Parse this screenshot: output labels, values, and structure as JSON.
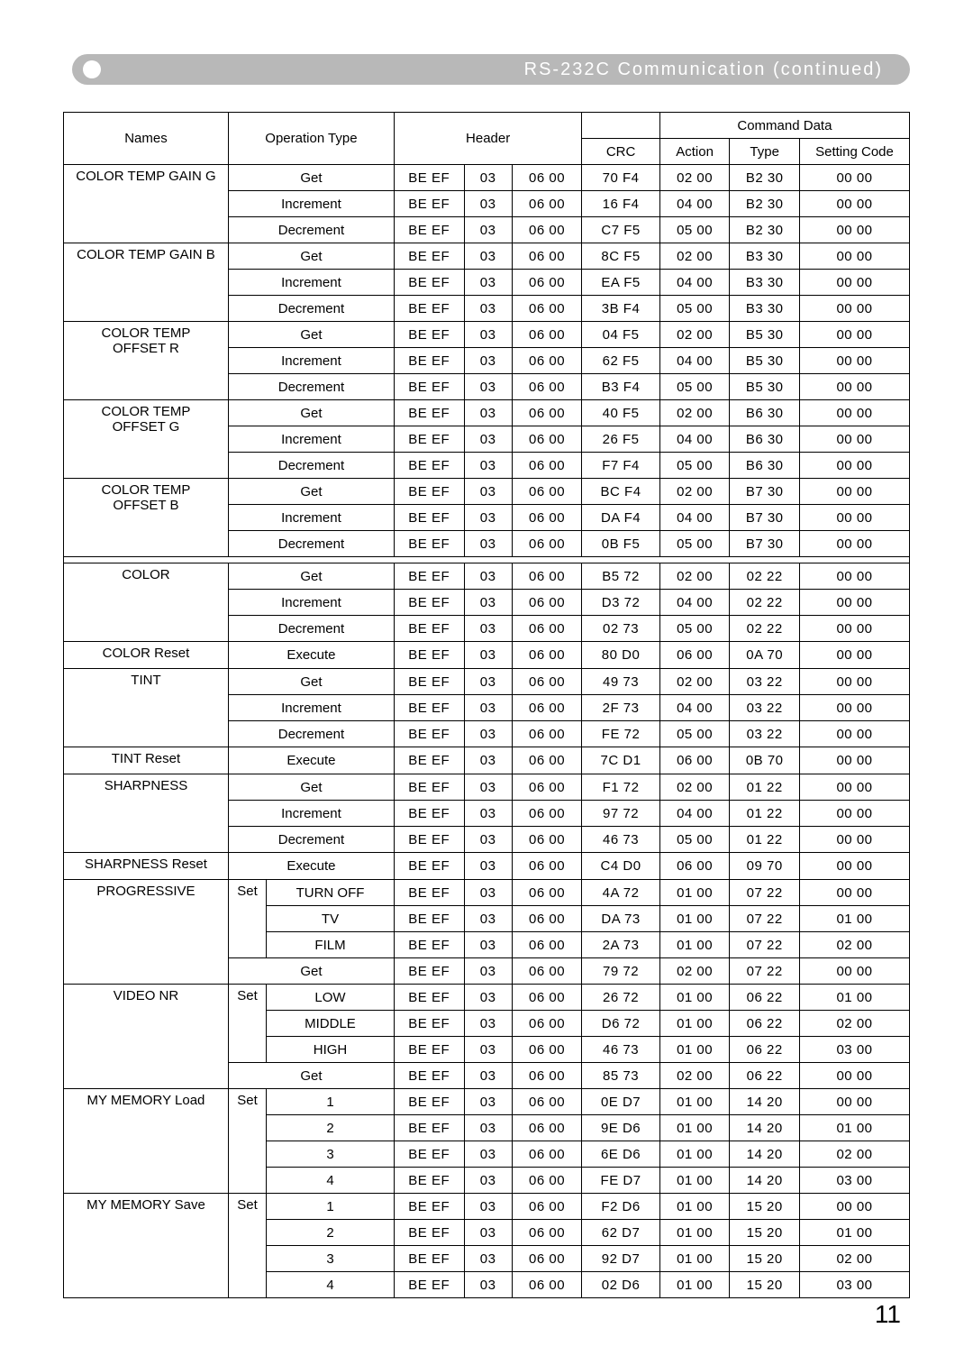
{
  "page_number": "11",
  "header_title": "RS-232C Communication (continued)",
  "th": {
    "names": "Names",
    "optype": "Operation Type",
    "header": "Header",
    "cmddata": "Command Data",
    "crc": "CRC",
    "action": "Action",
    "type": "Type",
    "setting": "Setting Code"
  },
  "groups": [
    {
      "name": "COLOR TEMP GAIN G",
      "rows": [
        {
          "op": "Get",
          "h1": "BE  EF",
          "h2": "03",
          "h3": "06  00",
          "crc": "70  F4",
          "act": "02  00",
          "typ": "B2  30",
          "set": "00  00"
        },
        {
          "op": "Increment",
          "h1": "BE  EF",
          "h2": "03",
          "h3": "06  00",
          "crc": "16  F4",
          "act": "04  00",
          "typ": "B2  30",
          "set": "00  00"
        },
        {
          "op": "Decrement",
          "h1": "BE  EF",
          "h2": "03",
          "h3": "06  00",
          "crc": "C7  F5",
          "act": "05  00",
          "typ": "B2  30",
          "set": "00  00"
        }
      ]
    },
    {
      "name": "COLOR TEMP GAIN B",
      "rows": [
        {
          "op": "Get",
          "h1": "BE  EF",
          "h2": "03",
          "h3": "06  00",
          "crc": "8C  F5",
          "act": "02  00",
          "typ": "B3  30",
          "set": "00  00"
        },
        {
          "op": "Increment",
          "h1": "BE  EF",
          "h2": "03",
          "h3": "06  00",
          "crc": "EA  F5",
          "act": "04  00",
          "typ": "B3  30",
          "set": "00  00"
        },
        {
          "op": "Decrement",
          "h1": "BE  EF",
          "h2": "03",
          "h3": "06  00",
          "crc": "3B  F4",
          "act": "05  00",
          "typ": "B3  30",
          "set": "00  00"
        }
      ]
    },
    {
      "name": "COLOR TEMP\nOFFSET R",
      "rows": [
        {
          "op": "Get",
          "h1": "BE  EF",
          "h2": "03",
          "h3": "06  00",
          "crc": "04  F5",
          "act": "02  00",
          "typ": "B5  30",
          "set": "00  00"
        },
        {
          "op": "Increment",
          "h1": "BE  EF",
          "h2": "03",
          "h3": "06  00",
          "crc": "62  F5",
          "act": "04  00",
          "typ": "B5  30",
          "set": "00  00"
        },
        {
          "op": "Decrement",
          "h1": "BE  EF",
          "h2": "03",
          "h3": "06  00",
          "crc": "B3  F4",
          "act": "05  00",
          "typ": "B5  30",
          "set": "00  00"
        }
      ]
    },
    {
      "name": "COLOR TEMP\nOFFSET G",
      "rows": [
        {
          "op": "Get",
          "h1": "BE  EF",
          "h2": "03",
          "h3": "06  00",
          "crc": "40  F5",
          "act": "02  00",
          "typ": "B6  30",
          "set": "00  00"
        },
        {
          "op": "Increment",
          "h1": "BE  EF",
          "h2": "03",
          "h3": "06  00",
          "crc": "26  F5",
          "act": "04  00",
          "typ": "B6  30",
          "set": "00  00"
        },
        {
          "op": "Decrement",
          "h1": "BE  EF",
          "h2": "03",
          "h3": "06  00",
          "crc": "F7  F4",
          "act": "05  00",
          "typ": "B6  30",
          "set": "00  00"
        }
      ]
    },
    {
      "name": "COLOR TEMP\nOFFSET B",
      "rows": [
        {
          "op": "Get",
          "h1": "BE  EF",
          "h2": "03",
          "h3": "06  00",
          "crc": "BC  F4",
          "act": "02  00",
          "typ": "B7  30",
          "set": "00  00"
        },
        {
          "op": "Increment",
          "h1": "BE  EF",
          "h2": "03",
          "h3": "06  00",
          "crc": "DA  F4",
          "act": "04  00",
          "typ": "B7  30",
          "set": "00  00"
        },
        {
          "op": "Decrement",
          "h1": "BE  EF",
          "h2": "03",
          "h3": "06  00",
          "crc": "0B  F5",
          "act": "05  00",
          "typ": "B7  30",
          "set": "00  00"
        }
      ]
    },
    {
      "gap": true
    },
    {
      "name": "COLOR",
      "rows": [
        {
          "op": "Get",
          "h1": "BE  EF",
          "h2": "03",
          "h3": "06  00",
          "crc": "B5  72",
          "act": "02  00",
          "typ": "02  22",
          "set": "00  00"
        },
        {
          "op": "Increment",
          "h1": "BE  EF",
          "h2": "03",
          "h3": "06  00",
          "crc": "D3  72",
          "act": "04  00",
          "typ": "02  22",
          "set": "00  00"
        },
        {
          "op": "Decrement",
          "h1": "BE  EF",
          "h2": "03",
          "h3": "06  00",
          "crc": "02  73",
          "act": "05  00",
          "typ": "02  22",
          "set": "00  00"
        }
      ]
    },
    {
      "name": "COLOR Reset",
      "rows": [
        {
          "op": "Execute",
          "h1": "BE  EF",
          "h2": "03",
          "h3": "06  00",
          "crc": "80  D0",
          "act": "06  00",
          "typ": "0A  70",
          "set": "00  00"
        }
      ]
    },
    {
      "name": "TINT",
      "rows": [
        {
          "op": "Get",
          "h1": "BE  EF",
          "h2": "03",
          "h3": "06  00",
          "crc": "49  73",
          "act": "02  00",
          "typ": "03  22",
          "set": "00  00"
        },
        {
          "op": "Increment",
          "h1": "BE  EF",
          "h2": "03",
          "h3": "06  00",
          "crc": "2F  73",
          "act": "04  00",
          "typ": "03  22",
          "set": "00  00"
        },
        {
          "op": "Decrement",
          "h1": "BE  EF",
          "h2": "03",
          "h3": "06  00",
          "crc": "FE  72",
          "act": "05  00",
          "typ": "03  22",
          "set": "00  00"
        }
      ]
    },
    {
      "name": "TINT Reset",
      "rows": [
        {
          "op": "Execute",
          "h1": "BE  EF",
          "h2": "03",
          "h3": "06  00",
          "crc": "7C  D1",
          "act": "06  00",
          "typ": "0B  70",
          "set": "00  00"
        }
      ]
    },
    {
      "name": "SHARPNESS",
      "rows": [
        {
          "op": "Get",
          "h1": "BE  EF",
          "h2": "03",
          "h3": "06  00",
          "crc": "F1  72",
          "act": "02  00",
          "typ": "01  22",
          "set": "00  00"
        },
        {
          "op": "Increment",
          "h1": "BE  EF",
          "h2": "03",
          "h3": "06  00",
          "crc": "97  72",
          "act": "04  00",
          "typ": "01  22",
          "set": "00  00"
        },
        {
          "op": "Decrement",
          "h1": "BE  EF",
          "h2": "03",
          "h3": "06  00",
          "crc": "46  73",
          "act": "05  00",
          "typ": "01  22",
          "set": "00  00"
        }
      ]
    },
    {
      "name": "SHARPNESS Reset",
      "rows": [
        {
          "op": "Execute",
          "h1": "BE  EF",
          "h2": "03",
          "h3": "06  00",
          "crc": "C4  D0",
          "act": "06  00",
          "typ": "09  70",
          "set": "00  00"
        }
      ]
    },
    {
      "name": "PROGRESSIVE",
      "setCount": 3,
      "rows": [
        {
          "opA": "Set",
          "op": "TURN OFF",
          "h1": "BE  EF",
          "h2": "03",
          "h3": "06  00",
          "crc": "4A  72",
          "act": "01  00",
          "typ": "07  22",
          "set": "00  00"
        },
        {
          "op": "TV",
          "h1": "BE  EF",
          "h2": "03",
          "h3": "06  00",
          "crc": "DA  73",
          "act": "01  00",
          "typ": "07  22",
          "set": "01  00"
        },
        {
          "op": "FILM",
          "h1": "BE  EF",
          "h2": "03",
          "h3": "06  00",
          "crc": "2A  73",
          "act": "01  00",
          "typ": "07  22",
          "set": "02  00"
        },
        {
          "op": "Get",
          "full": true,
          "h1": "BE  EF",
          "h2": "03",
          "h3": "06  00",
          "crc": "79  72",
          "act": "02  00",
          "typ": "07  22",
          "set": "00  00"
        }
      ]
    },
    {
      "name": "VIDEO NR",
      "setCount": 3,
      "rows": [
        {
          "opA": "Set",
          "op": "LOW",
          "h1": "BE  EF",
          "h2": "03",
          "h3": "06  00",
          "crc": "26  72",
          "act": "01  00",
          "typ": "06  22",
          "set": "01  00"
        },
        {
          "op": "MIDDLE",
          "h1": "BE  EF",
          "h2": "03",
          "h3": "06  00",
          "crc": "D6  72",
          "act": "01  00",
          "typ": "06  22",
          "set": "02  00"
        },
        {
          "op": "HIGH",
          "h1": "BE  EF",
          "h2": "03",
          "h3": "06  00",
          "crc": "46  73",
          "act": "01  00",
          "typ": "06  22",
          "set": "03  00"
        },
        {
          "op": "Get",
          "full": true,
          "h1": "BE  EF",
          "h2": "03",
          "h3": "06  00",
          "crc": "85  73",
          "act": "02  00",
          "typ": "06  22",
          "set": "00  00"
        }
      ]
    },
    {
      "name": "MY MEMORY Load",
      "setCount": 4,
      "rows": [
        {
          "opA": "Set",
          "op": "1",
          "h1": "BE  EF",
          "h2": "03",
          "h3": "06  00",
          "crc": "0E  D7",
          "act": "01  00",
          "typ": "14  20",
          "set": "00  00"
        },
        {
          "op": "2",
          "h1": "BE  EF",
          "h2": "03",
          "h3": "06  00",
          "crc": "9E  D6",
          "act": "01  00",
          "typ": "14  20",
          "set": "01  00"
        },
        {
          "op": "3",
          "h1": "BE  EF",
          "h2": "03",
          "h3": "06  00",
          "crc": "6E  D6",
          "act": "01  00",
          "typ": "14  20",
          "set": "02  00"
        },
        {
          "op": "4",
          "h1": "BE  EF",
          "h2": "03",
          "h3": "06  00",
          "crc": "FE  D7",
          "act": "01  00",
          "typ": "14  20",
          "set": "03  00"
        }
      ]
    },
    {
      "name": "MY MEMORY Save",
      "setCount": 4,
      "rows": [
        {
          "opA": "Set",
          "op": "1",
          "h1": "BE  EF",
          "h2": "03",
          "h3": "06  00",
          "crc": "F2  D6",
          "act": "01  00",
          "typ": "15  20",
          "set": "00  00"
        },
        {
          "op": "2",
          "h1": "BE  EF",
          "h2": "03",
          "h3": "06  00",
          "crc": "62  D7",
          "act": "01  00",
          "typ": "15  20",
          "set": "01  00"
        },
        {
          "op": "3",
          "h1": "BE  EF",
          "h2": "03",
          "h3": "06  00",
          "crc": "92  D7",
          "act": "01  00",
          "typ": "15  20",
          "set": "02  00"
        },
        {
          "op": "4",
          "h1": "BE  EF",
          "h2": "03",
          "h3": "06  00",
          "crc": "02  D6",
          "act": "01  00",
          "typ": "15  20",
          "set": "03  00"
        }
      ]
    }
  ]
}
